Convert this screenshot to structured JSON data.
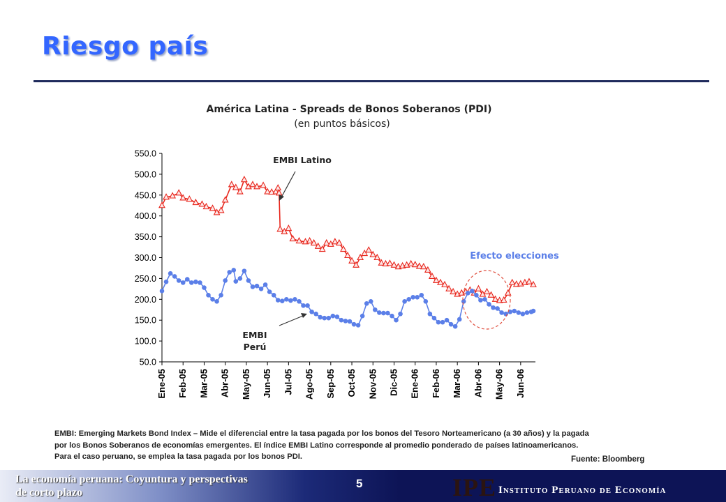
{
  "slide": {
    "title": "Riesgo país",
    "note_lines": [
      "EMBI: Emerging Markets Bond Index – Mide el diferencial entre la tasa pagada por los bonos del Tesoro Norteamericano  (a 30 años) y la pagada",
      "por los Bonos Soberanos de economías emergentes. El índice EMBI Latino corresponde al promedio ponderado de países latinoamericanos.",
      "Para el caso peruano, se emplea la tasa pagada por los bonos PDI."
    ],
    "source": "Fuente: Bloomberg"
  },
  "footer": {
    "left_line1": "La economía peruana: Coyuntura y perspectivas",
    "left_line2": "de corto plazo",
    "page_number": "5",
    "logo_text": "IPE",
    "institute_name": "Instituto Peruano de Economía"
  },
  "colors": {
    "title": "#3366ff",
    "latino": "#e8261c",
    "peru": "#5b7fe8",
    "annotation": "#5b7fe8",
    "circle": "#e05040"
  },
  "chart_data": {
    "type": "line",
    "title": "América Latina  - Spreads de Bonos Soberanos (PDI)",
    "subtitle": "(en puntos básicos)",
    "categories": [
      "Ene-05",
      "Feb-05",
      "Mar-05",
      "Abr-05",
      "May-05",
      "Jun-05",
      "Jul-05",
      "Ago-05",
      "Sep-05",
      "Oct-05",
      "Nov-05",
      "Dic-05",
      "Ene-06",
      "Feb-06",
      "Mar-06",
      "Abr-06",
      "May-06",
      "Jun-06"
    ],
    "x_range": [
      0,
      17.7
    ],
    "ylim": [
      50,
      550
    ],
    "yticks": [
      "50.0",
      "100.0",
      "150.0",
      "200.0",
      "250.0",
      "300.0",
      "350.0",
      "400.0",
      "450.0",
      "500.0",
      "550.0"
    ],
    "grid": false,
    "series": [
      {
        "name": "EMBI Latino",
        "color": "#e8261c",
        "marker": "triangle",
        "points": [
          [
            0,
            425
          ],
          [
            0.2,
            445
          ],
          [
            0.5,
            448
          ],
          [
            0.8,
            455
          ],
          [
            1.0,
            443
          ],
          [
            1.3,
            440
          ],
          [
            1.6,
            432
          ],
          [
            1.9,
            428
          ],
          [
            2.1,
            422
          ],
          [
            2.4,
            418
          ],
          [
            2.6,
            408
          ],
          [
            2.8,
            413
          ],
          [
            3.0,
            438
          ],
          [
            3.3,
            475
          ],
          [
            3.5,
            468
          ],
          [
            3.7,
            458
          ],
          [
            3.9,
            487
          ],
          [
            4.1,
            470
          ],
          [
            4.3,
            475
          ],
          [
            4.5,
            470
          ],
          [
            4.8,
            473
          ],
          [
            5.0,
            458
          ],
          [
            5.2,
            457
          ],
          [
            5.4,
            458
          ],
          [
            5.5,
            467
          ],
          [
            5.55,
            455
          ],
          [
            5.6,
            368
          ],
          [
            5.8,
            362
          ],
          [
            6.0,
            370
          ],
          [
            6.2,
            345
          ],
          [
            6.5,
            340
          ],
          [
            6.8,
            338
          ],
          [
            7.0,
            340
          ],
          [
            7.2,
            335
          ],
          [
            7.4,
            327
          ],
          [
            7.6,
            320
          ],
          [
            7.8,
            335
          ],
          [
            8.0,
            332
          ],
          [
            8.2,
            338
          ],
          [
            8.4,
            335
          ],
          [
            8.6,
            320
          ],
          [
            8.8,
            305
          ],
          [
            9.0,
            292
          ],
          [
            9.2,
            282
          ],
          [
            9.4,
            300
          ],
          [
            9.6,
            310
          ],
          [
            9.8,
            318
          ],
          [
            10.0,
            307
          ],
          [
            10.2,
            300
          ],
          [
            10.4,
            287
          ],
          [
            10.6,
            285
          ],
          [
            10.8,
            286
          ],
          [
            11.0,
            282
          ],
          [
            11.2,
            278
          ],
          [
            11.4,
            280
          ],
          [
            11.6,
            282
          ],
          [
            11.8,
            285
          ],
          [
            12.0,
            283
          ],
          [
            12.2,
            279
          ],
          [
            12.4,
            278
          ],
          [
            12.6,
            270
          ],
          [
            12.8,
            255
          ],
          [
            13.0,
            245
          ],
          [
            13.2,
            240
          ],
          [
            13.4,
            235
          ],
          [
            13.6,
            225
          ],
          [
            13.8,
            218
          ],
          [
            14.0,
            212
          ],
          [
            14.2,
            215
          ],
          [
            14.4,
            218
          ],
          [
            14.6,
            222
          ],
          [
            14.8,
            215
          ],
          [
            15.0,
            225
          ],
          [
            15.2,
            212
          ],
          [
            15.4,
            218
          ],
          [
            15.6,
            210
          ],
          [
            15.8,
            200
          ],
          [
            16.0,
            197
          ],
          [
            16.2,
            198
          ],
          [
            16.4,
            215
          ],
          [
            16.6,
            240
          ],
          [
            16.8,
            236
          ],
          [
            17.0,
            237
          ],
          [
            17.2,
            240
          ],
          [
            17.4,
            242
          ],
          [
            17.6,
            235
          ]
        ]
      },
      {
        "name": "EMBI Perú",
        "color": "#5b7fe8",
        "marker": "circle",
        "points": [
          [
            0,
            220
          ],
          [
            0.2,
            242
          ],
          [
            0.4,
            262
          ],
          [
            0.6,
            255
          ],
          [
            0.8,
            245
          ],
          [
            1.0,
            240
          ],
          [
            1.2,
            248
          ],
          [
            1.4,
            240
          ],
          [
            1.6,
            242
          ],
          [
            1.8,
            240
          ],
          [
            2.0,
            228
          ],
          [
            2.2,
            210
          ],
          [
            2.4,
            200
          ],
          [
            2.6,
            195
          ],
          [
            2.8,
            210
          ],
          [
            3.0,
            245
          ],
          [
            3.2,
            265
          ],
          [
            3.4,
            270
          ],
          [
            3.5,
            243
          ],
          [
            3.7,
            250
          ],
          [
            3.9,
            268
          ],
          [
            4.1,
            245
          ],
          [
            4.3,
            230
          ],
          [
            4.5,
            232
          ],
          [
            4.7,
            225
          ],
          [
            4.9,
            235
          ],
          [
            5.1,
            218
          ],
          [
            5.3,
            210
          ],
          [
            5.5,
            198
          ],
          [
            5.7,
            196
          ],
          [
            5.9,
            200
          ],
          [
            6.1,
            197
          ],
          [
            6.3,
            200
          ],
          [
            6.5,
            195
          ],
          [
            6.7,
            185
          ],
          [
            6.9,
            185
          ],
          [
            7.1,
            170
          ],
          [
            7.3,
            165
          ],
          [
            7.5,
            157
          ],
          [
            7.7,
            155
          ],
          [
            7.9,
            155
          ],
          [
            8.1,
            160
          ],
          [
            8.3,
            158
          ],
          [
            8.5,
            150
          ],
          [
            8.7,
            148
          ],
          [
            8.9,
            147
          ],
          [
            9.1,
            140
          ],
          [
            9.3,
            138
          ],
          [
            9.5,
            160
          ],
          [
            9.7,
            190
          ],
          [
            9.9,
            195
          ],
          [
            10.1,
            175
          ],
          [
            10.3,
            168
          ],
          [
            10.5,
            167
          ],
          [
            10.7,
            167
          ],
          [
            10.9,
            160
          ],
          [
            11.1,
            150
          ],
          [
            11.3,
            165
          ],
          [
            11.5,
            195
          ],
          [
            11.7,
            200
          ],
          [
            11.9,
            205
          ],
          [
            12.1,
            205
          ],
          [
            12.3,
            210
          ],
          [
            12.5,
            195
          ],
          [
            12.7,
            165
          ],
          [
            12.9,
            155
          ],
          [
            13.1,
            145
          ],
          [
            13.3,
            145
          ],
          [
            13.5,
            150
          ],
          [
            13.7,
            140
          ],
          [
            13.9,
            135
          ],
          [
            14.1,
            152
          ],
          [
            14.3,
            195
          ],
          [
            14.5,
            215
          ],
          [
            14.7,
            220
          ],
          [
            14.9,
            210
          ],
          [
            15.1,
            198
          ],
          [
            15.3,
            200
          ],
          [
            15.5,
            188
          ],
          [
            15.7,
            180
          ],
          [
            15.9,
            178
          ],
          [
            16.1,
            168
          ],
          [
            16.3,
            165
          ],
          [
            16.5,
            170
          ],
          [
            16.7,
            172
          ],
          [
            16.9,
            168
          ],
          [
            17.1,
            165
          ],
          [
            17.3,
            168
          ],
          [
            17.5,
            170
          ],
          [
            17.6,
            172
          ]
        ]
      }
    ],
    "annotations": [
      {
        "text": "EMBI Latino",
        "points_to_series": "EMBI Latino"
      },
      {
        "lines": [
          "EMBI",
          "Perú"
        ],
        "points_to_series": "EMBI Perú"
      },
      {
        "text": "Efecto elecciones"
      }
    ]
  }
}
